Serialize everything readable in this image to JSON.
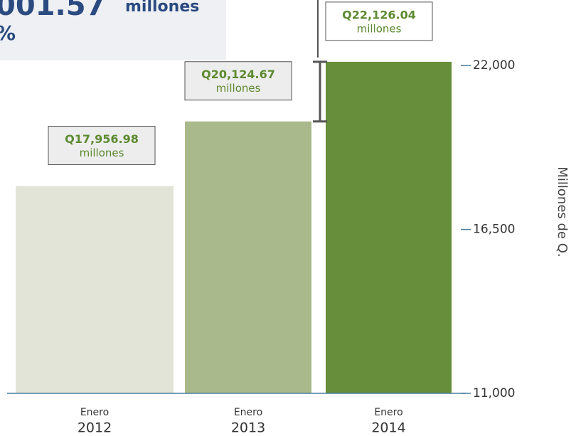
{
  "chart_data": {
    "type": "bar",
    "categories": [
      "2012",
      "2013",
      "2014"
    ],
    "category_months": [
      "Enero",
      "Enero",
      "Enero"
    ],
    "values": [
      17956.98,
      20124.67,
      22126.04
    ],
    "value_labels": [
      "Q17,956.98",
      "Q20,124.67",
      "Q22,126.04"
    ],
    "value_label_unit": "millones",
    "colors": [
      "#e3e4d8",
      "#a9b98b",
      "#678e3a"
    ],
    "ylim": [
      11000,
      24200
    ],
    "yticks": [
      {
        "value": 11000,
        "label": "11,000"
      },
      {
        "value": 16500,
        "label": "16,500"
      },
      {
        "value": 22000,
        "label": "22,000"
      }
    ],
    "ylabel": "Millones de Q.",
    "annotation": {
      "amount": "001.57",
      "unit": "millones",
      "percent": "%"
    }
  }
}
